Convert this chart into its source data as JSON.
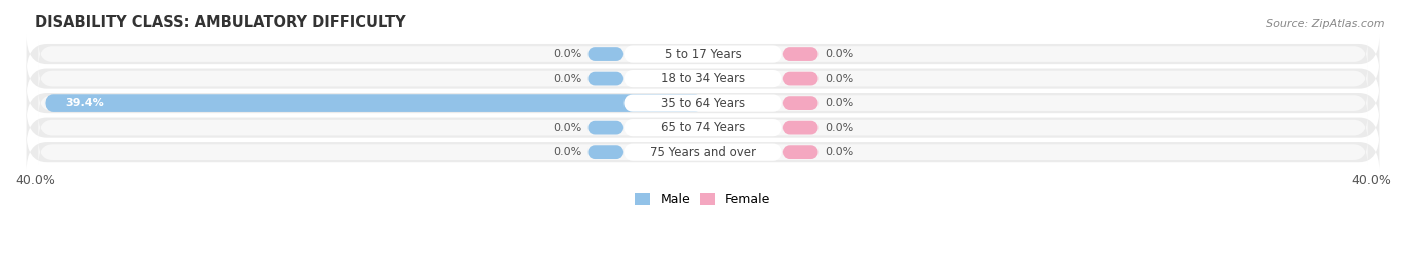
{
  "title": "DISABILITY CLASS: AMBULATORY DIFFICULTY",
  "source": "Source: ZipAtlas.com",
  "categories": [
    "5 to 17 Years",
    "18 to 34 Years",
    "35 to 64 Years",
    "65 to 74 Years",
    "75 Years and over"
  ],
  "male_values": [
    0.0,
    0.0,
    39.4,
    0.0,
    0.0
  ],
  "female_values": [
    0.0,
    0.0,
    0.0,
    0.0,
    0.0
  ],
  "x_max": 40.0,
  "x_min": -40.0,
  "male_color": "#92C2E8",
  "female_color": "#F4A7C0",
  "row_bg_color": "#EBEBEB",
  "row_bg_color2": "#F7F7F7",
  "title_fontsize": 10.5,
  "source_fontsize": 8,
  "tick_fontsize": 9,
  "bar_label_fontsize": 8,
  "category_fontsize": 8.5,
  "axis_label_left": "40.0%",
  "axis_label_right": "40.0%",
  "fig_width": 14.06,
  "fig_height": 2.69,
  "dpi": 100
}
